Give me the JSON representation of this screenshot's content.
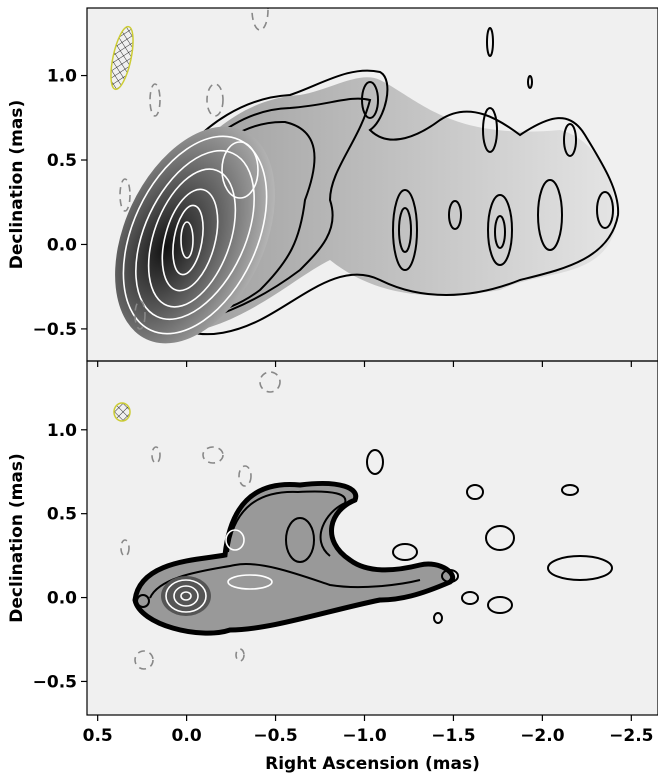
{
  "chart_data": [
    {
      "type": "contour",
      "ylabel": "Declination (mas)",
      "xlim": [
        0.56,
        -2.65
      ],
      "xticks": [
        0.5,
        0,
        -0.5,
        -1,
        -1.5,
        -2,
        -2.5
      ],
      "ylim": [
        -0.69,
        1.4
      ],
      "yticks": [
        {
          "value": -0.5,
          "label": "−0.5"
        },
        {
          "value": 0,
          "label": "0.0"
        },
        0.5,
        {
          "value": 1,
          "label": "1.0"
        }
      ]
    },
    {
      "type": "contour",
      "xlabel": "Right Ascension (mas)",
      "ylabel": "Declination (mas)",
      "xlim": [
        0.56,
        -2.65
      ],
      "xticks": [
        0.5,
        {
          "value": 0,
          "label": "0.0"
        },
        {
          "value": -0.5,
          "label": "−0.5"
        },
        {
          "value": -1,
          "label": "−1.0"
        },
        {
          "value": -1.5,
          "label": "−1.5"
        },
        {
          "value": -2,
          "label": "−2.0"
        },
        {
          "value": -2.5,
          "label": "−2.5"
        }
      ],
      "ylim": [
        -0.7,
        1.41
      ],
      "yticks": [
        {
          "value": -0.5,
          "label": "−0.5"
        },
        {
          "value": 0,
          "label": "0.0"
        },
        0.5,
        {
          "value": 1,
          "label": "1.0"
        }
      ]
    }
  ]
}
